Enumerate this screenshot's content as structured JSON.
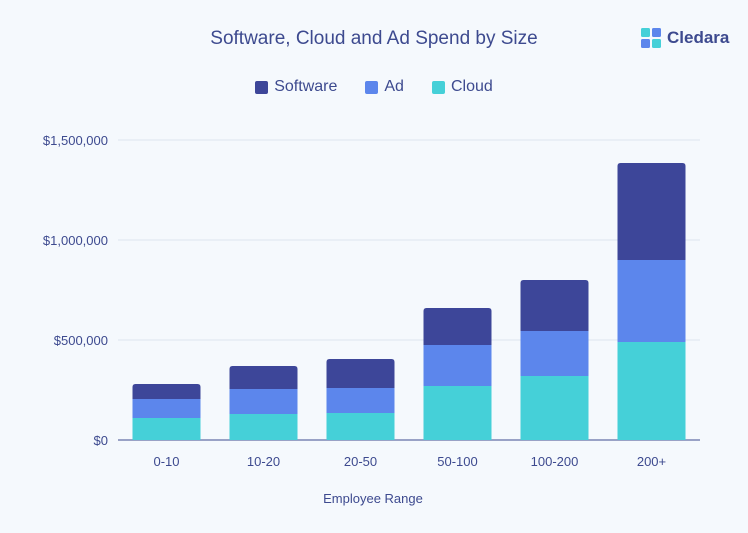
{
  "chart_data": {
    "type": "bar",
    "stacked": true,
    "title": "Software, Cloud and Ad Spend by Size",
    "xlabel": "Employee Range",
    "ylabel": "",
    "categories": [
      "0-10",
      "10-20",
      "20-50",
      "50-100",
      "100-200",
      "200+"
    ],
    "series": [
      {
        "name": "Cloud",
        "color": "#45d0d8",
        "values": [
          110000,
          130000,
          135000,
          270000,
          320000,
          490000
        ]
      },
      {
        "name": "Ad",
        "color": "#5c86ec",
        "values": [
          95000,
          125000,
          125000,
          205000,
          225000,
          410000
        ]
      },
      {
        "name": "Software",
        "color": "#3d4699",
        "values": [
          75000,
          115000,
          145000,
          185000,
          255000,
          485000
        ]
      }
    ],
    "ylim": [
      0,
      1500000
    ],
    "yticks": [
      0,
      500000,
      1000000,
      1500000
    ],
    "ytick_labels": [
      "$0",
      "$500,000",
      "$1,000,000",
      "$1,500,000"
    ],
    "grid": true,
    "legend_position": "top-center",
    "legend_order": [
      "Software",
      "Ad",
      "Cloud"
    ]
  },
  "brand": {
    "name": "Cledara",
    "icon": "cledara-logo-icon"
  }
}
